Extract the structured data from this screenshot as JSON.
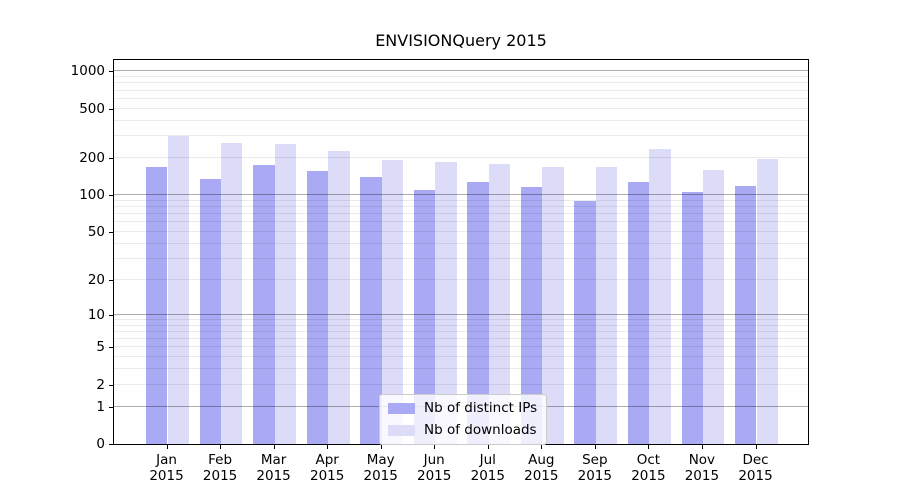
{
  "title": "ENVISIONQuery 2015",
  "chart_data": {
    "type": "bar",
    "title": "ENVISIONQuery 2015",
    "xlabel": "",
    "ylabel": "",
    "yscale": "log1p",
    "ylim": [
      0,
      1280
    ],
    "grid": "both",
    "legend_position": "lower-center",
    "categories": [
      "Jan 2015",
      "Feb 2015",
      "Mar 2015",
      "Apr 2015",
      "May 2015",
      "Jun 2015",
      "Jul 2015",
      "Aug 2015",
      "Sep 2015",
      "Oct 2015",
      "Nov 2015",
      "Dec 2015"
    ],
    "x_tick_labels": [
      [
        "Jan",
        "2015"
      ],
      [
        "Feb",
        "2015"
      ],
      [
        "Mar",
        "2015"
      ],
      [
        "Apr",
        "2015"
      ],
      [
        "May",
        "2015"
      ],
      [
        "Jun",
        "2015"
      ],
      [
        "Jul",
        "2015"
      ],
      [
        "Aug",
        "2015"
      ],
      [
        "Sep",
        "2015"
      ],
      [
        "Oct",
        "2015"
      ],
      [
        "Nov",
        "2015"
      ],
      [
        "Dec",
        "2015"
      ]
    ],
    "y_ticks": [
      1000,
      500,
      200,
      100,
      50,
      20,
      10,
      5,
      2,
      1,
      0
    ],
    "y_grid_major": [
      1,
      10,
      100,
      1000
    ],
    "y_grid_minor": [
      2,
      3,
      4,
      5,
      6,
      7,
      8,
      9,
      20,
      30,
      40,
      50,
      60,
      70,
      80,
      90,
      200,
      300,
      400,
      500,
      600,
      700,
      800,
      900
    ],
    "series": [
      {
        "name": "Nb of distinct IPs",
        "color": "#a9a9f4",
        "values": [
          168,
          136,
          175,
          157,
          139,
          111,
          128,
          116,
          89,
          128,
          106,
          118
        ]
      },
      {
        "name": "Nb of downloads",
        "color": "#dcdcf9",
        "values": [
          300,
          262,
          258,
          228,
          193,
          186,
          180,
          168,
          170,
          237,
          159,
          198
        ]
      }
    ]
  },
  "colors": {
    "background": "#ffffff",
    "spine": "#000000",
    "grid_major": "rgba(0,0,0,0.32)",
    "grid_minor": "rgba(0,0,0,0.08)",
    "legend_border": "#cccccc",
    "legend_background": "rgba(255,255,255,0.8)"
  }
}
